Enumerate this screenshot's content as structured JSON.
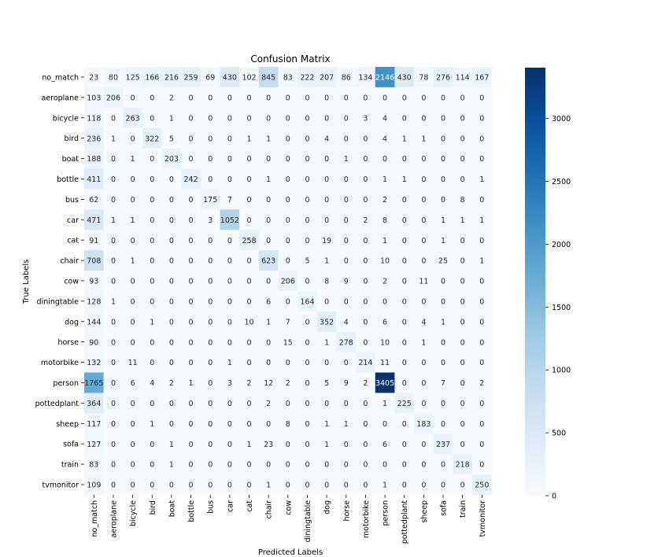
{
  "chart_data": {
    "type": "heatmap",
    "title": "Confusion Matrix",
    "xlabel": "Predicted Labels",
    "ylabel": "True Labels",
    "categories": [
      "no_match",
      "aeroplane",
      "bicycle",
      "bird",
      "boat",
      "bottle",
      "bus",
      "car",
      "cat",
      "chair",
      "cow",
      "diningtable",
      "dog",
      "horse",
      "motorbike",
      "person",
      "pottedplant",
      "sheep",
      "sofa",
      "train",
      "tvmonitor"
    ],
    "matrix": [
      [
        23,
        80,
        125,
        166,
        216,
        259,
        69,
        430,
        102,
        845,
        83,
        222,
        207,
        86,
        134,
        2146,
        430,
        78,
        276,
        114,
        167
      ],
      [
        103,
        206,
        0,
        0,
        2,
        0,
        0,
        0,
        0,
        0,
        0,
        0,
        0,
        0,
        0,
        0,
        0,
        0,
        0,
        0,
        0
      ],
      [
        118,
        0,
        263,
        0,
        1,
        0,
        0,
        0,
        0,
        0,
        0,
        0,
        0,
        0,
        3,
        4,
        0,
        0,
        0,
        0,
        0
      ],
      [
        236,
        1,
        0,
        322,
        5,
        0,
        0,
        0,
        1,
        1,
        0,
        0,
        4,
        0,
        0,
        4,
        1,
        1,
        0,
        0,
        0
      ],
      [
        188,
        0,
        1,
        0,
        203,
        0,
        0,
        0,
        0,
        0,
        0,
        0,
        0,
        1,
        0,
        0,
        0,
        0,
        0,
        0,
        0
      ],
      [
        411,
        0,
        0,
        0,
        0,
        242,
        0,
        0,
        0,
        1,
        0,
        0,
        0,
        0,
        0,
        1,
        1,
        0,
        0,
        0,
        1
      ],
      [
        62,
        0,
        0,
        0,
        0,
        0,
        175,
        7,
        0,
        0,
        0,
        0,
        0,
        0,
        0,
        2,
        0,
        0,
        0,
        8,
        0
      ],
      [
        471,
        1,
        1,
        0,
        0,
        0,
        3,
        1052,
        0,
        0,
        0,
        0,
        0,
        0,
        2,
        8,
        0,
        0,
        1,
        1,
        1
      ],
      [
        91,
        0,
        0,
        0,
        0,
        0,
        0,
        0,
        258,
        0,
        0,
        0,
        19,
        0,
        0,
        1,
        0,
        0,
        1,
        0,
        0
      ],
      [
        708,
        0,
        1,
        0,
        0,
        0,
        0,
        0,
        0,
        623,
        0,
        5,
        1,
        0,
        0,
        10,
        0,
        0,
        25,
        0,
        1
      ],
      [
        93,
        0,
        0,
        0,
        0,
        0,
        0,
        0,
        0,
        0,
        206,
        0,
        8,
        9,
        0,
        2,
        0,
        11,
        0,
        0,
        0
      ],
      [
        128,
        1,
        0,
        0,
        0,
        0,
        0,
        0,
        0,
        6,
        0,
        164,
        0,
        0,
        0,
        0,
        0,
        0,
        0,
        0,
        0
      ],
      [
        144,
        0,
        0,
        1,
        0,
        0,
        0,
        0,
        10,
        1,
        7,
        0,
        352,
        4,
        0,
        6,
        0,
        4,
        1,
        0,
        0
      ],
      [
        90,
        0,
        0,
        0,
        0,
        0,
        0,
        0,
        0,
        0,
        15,
        0,
        1,
        278,
        0,
        10,
        0,
        1,
        0,
        0,
        0
      ],
      [
        132,
        0,
        11,
        0,
        0,
        0,
        0,
        1,
        0,
        0,
        0,
        0,
        0,
        0,
        214,
        11,
        0,
        0,
        0,
        0,
        0
      ],
      [
        1765,
        0,
        6,
        4,
        2,
        1,
        0,
        3,
        2,
        12,
        2,
        0,
        5,
        9,
        2,
        3405,
        0,
        0,
        7,
        0,
        2
      ],
      [
        364,
        0,
        0,
        0,
        0,
        0,
        0,
        0,
        0,
        2,
        0,
        0,
        0,
        0,
        0,
        1,
        225,
        0,
        0,
        0,
        0
      ],
      [
        117,
        0,
        0,
        1,
        0,
        0,
        0,
        0,
        0,
        0,
        8,
        0,
        1,
        1,
        0,
        0,
        0,
        183,
        0,
        0,
        0
      ],
      [
        127,
        0,
        0,
        0,
        1,
        0,
        0,
        0,
        1,
        23,
        0,
        0,
        1,
        0,
        0,
        6,
        0,
        0,
        237,
        0,
        0
      ],
      [
        83,
        0,
        0,
        0,
        1,
        0,
        0,
        0,
        0,
        0,
        0,
        0,
        0,
        0,
        0,
        0,
        0,
        0,
        0,
        218,
        0
      ],
      [
        109,
        0,
        0,
        0,
        0,
        0,
        0,
        0,
        0,
        1,
        0,
        0,
        0,
        0,
        0,
        1,
        0,
        0,
        0,
        0,
        250
      ]
    ],
    "colorbar": {
      "min": 0,
      "max": 3405,
      "ticks": [
        0,
        500,
        1000,
        1500,
        2000,
        2500,
        3000
      ],
      "colormap": [
        "#f7fbff",
        "#deebf7",
        "#c6dbef",
        "#9ecae1",
        "#6baed6",
        "#4292c6",
        "#2171b5",
        "#08519c",
        "#08306b"
      ]
    },
    "grid": false
  }
}
